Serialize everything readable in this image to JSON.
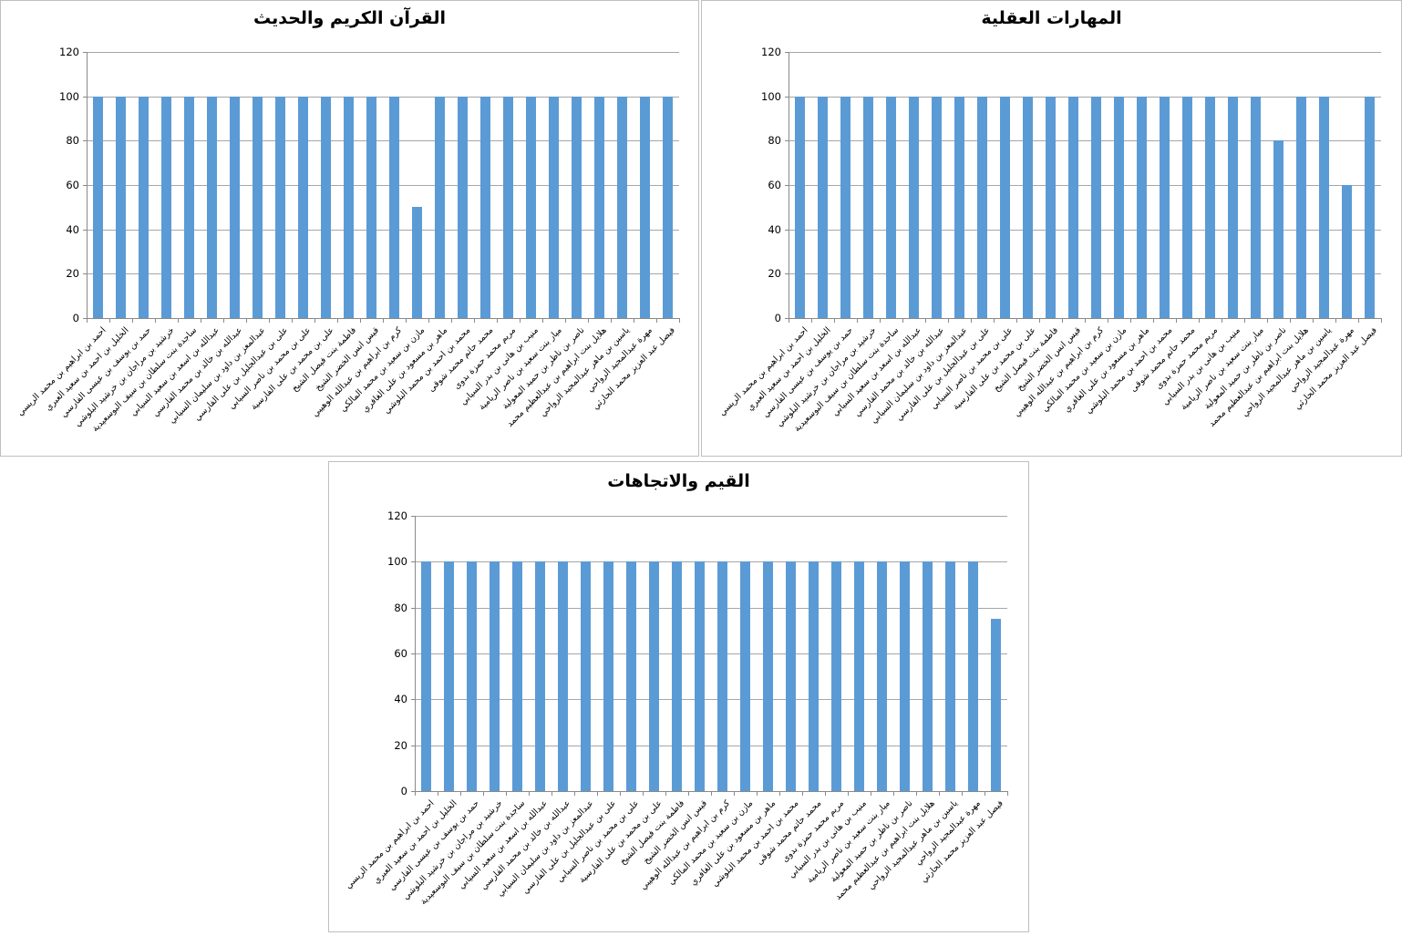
{
  "page": {
    "background": "#ffffff"
  },
  "colors": {
    "bar": "#5b9bd5",
    "gridline": "#a6a6a6",
    "axis": "#898989",
    "panel_border": "#bfbfbf",
    "title_text": "#000000"
  },
  "chart_data": [
    {
      "type": "bar",
      "title": "القرآن الكريم والحديث",
      "xlabel": "",
      "ylabel": "",
      "ylim": [
        0,
        120
      ],
      "yticks": [
        0,
        20,
        40,
        60,
        80,
        100,
        120
      ],
      "grid": true,
      "legend": "none",
      "categories": [
        "احمد بن ابراهيم بن محمد الريسي",
        "الخليل بن احمد بن سعيد العبري",
        "حمد بن يوسف بن عيسى الفارسي",
        "خرشيد بن مراجان بن خرشيد البلوشي",
        "ساجدة بنت سلطان بن سيف البوسعيدية",
        "عبدالله بن اسعد بن سعيد السيابي",
        "عبدالله بن خالد بن محمد الفارسي",
        "عبدالمعز بن داود بن سليمان السيابي",
        "على بن عبدالجليل بن على الفارسي",
        "على بن محمد بن ناصر السيابي",
        "على بن محمد بن على الفارسية",
        "فاطمة بنت فيصل الشيخ",
        "قيس انس الخضر الشيخ",
        "كرم بن ابراهيم بن عبدالله الوهيبي",
        "مازن بن سعيد بن محمد المالكي",
        "ماهر بن مسعود بن على الغافري",
        "محمد بن احمد بن محمد البلوشي",
        "محمد حاتم محمد شوقى",
        "مريم محمد حمزة بدوى",
        "منيب بن هانى بن بدر السيابي",
        "ميار بنت سعيد بن ناصر الريامية",
        "ناصر بن ناظر بن حميد المعولية",
        "هلايل بنت ابراهيم بن عبدالعظيم محمد",
        "ياسين بن ماهر عبدالمجيد الرواحي",
        "مهرة عبدالمجيد الرواحي",
        "فيصل عبد العزيز محمد الحارثي"
      ],
      "values": [
        100,
        100,
        100,
        100,
        100,
        100,
        100,
        100,
        100,
        100,
        100,
        100,
        100,
        100,
        50,
        100,
        100,
        100,
        100,
        100,
        100,
        100,
        100,
        100,
        100,
        100
      ]
    },
    {
      "type": "bar",
      "title": "المهارات العقلية",
      "xlabel": "",
      "ylabel": "",
      "ylim": [
        0,
        120
      ],
      "yticks": [
        0,
        20,
        40,
        60,
        80,
        100,
        120
      ],
      "grid": true,
      "legend": "none",
      "categories": [
        "احمد بن ابراهيم بن محمد الريسي",
        "الخليل بن احمد بن سعيد العبري",
        "حمد بن يوسف بن عيسى الفارسي",
        "خرشيد بن مراجان بن خرشيد البلوشي",
        "ساجدة بنت سلطان بن سيف البوسعيدية",
        "عبدالله بن اسعد بن سعيد السيابي",
        "عبدالله بن خالد بن محمد الفارسي",
        "عبدالمعز بن داود بن سليمان السيابي",
        "على بن عبدالجليل بن على الفارسي",
        "على بن محمد بن ناصر السيابي",
        "على بن محمد بن على الفارسية",
        "فاطمة بنت فيصل الشيخ",
        "قيس انس الخضر الشيخ",
        "كرم بن ابراهيم بن عبدالله الوهيبي",
        "مازن بن سعيد بن محمد المالكي",
        "ماهر بن مسعود بن على الغافري",
        "محمد بن احمد بن محمد البلوشي",
        "محمد حاتم محمد شوقى",
        "مريم محمد حمزة بدوى",
        "منيب بن هانى بن بدر السيابي",
        "ميار بنت سعيد بن ناصر الريامية",
        "ناصر بن ناظر بن حميد المعولية",
        "هلايل بنت ابراهيم بن عبدالعظيم محمد",
        "ياسين بن ماهر عبدالمجيد الرواحي",
        "مهرة عبدالمجيد الرواحي",
        "فيصل عبد العزيز محمد الحارثي"
      ],
      "values": [
        100,
        100,
        100,
        100,
        100,
        100,
        100,
        100,
        100,
        100,
        100,
        100,
        100,
        100,
        100,
        100,
        100,
        100,
        100,
        100,
        100,
        80,
        100,
        100,
        60,
        100
      ]
    },
    {
      "type": "bar",
      "title": "القيم والاتجاهات",
      "xlabel": "",
      "ylabel": "",
      "ylim": [
        0,
        120
      ],
      "yticks": [
        0,
        20,
        40,
        60,
        80,
        100,
        120
      ],
      "grid": true,
      "legend": "none",
      "categories": [
        "احمد بن ابراهيم بن محمد الريسي",
        "الخليل بن احمد بن سعيد العبري",
        "حمد بن يوسف بن عيسى الفارسي",
        "خرشيد بن مراجان بن خرشيد البلوشي",
        "ساجدة بنت سلطان بن سيف البوسعيدية",
        "عبدالله بن اسعد بن سعيد السيابي",
        "عبدالله بن خالد بن محمد الفارسي",
        "عبدالمعز بن داود بن سليمان السيابي",
        "على بن عبدالجليل بن على الفارسي",
        "على بن محمد بن ناصر السيابي",
        "على بن محمد بن على الفارسية",
        "فاطمة بنت فيصل الشيخ",
        "قيس انس الخضر الشيخ",
        "كرم بن ابراهيم بن عبدالله الوهيبي",
        "مازن بن سعيد بن محمد المالكي",
        "ماهر بن مسعود بن على الغافري",
        "محمد بن احمد بن محمد البلوشي",
        "محمد حاتم محمد شوقى",
        "مريم محمد حمزة بدوى",
        "منيب بن هانى بن بدر السيابي",
        "ميار بنت سعيد بن ناصر الريامية",
        "ناصر بن ناظر بن حميد المعولية",
        "هلايل بنت ابراهيم بن عبدالعظيم محمد",
        "ياسين بن ماهر عبدالمجيد الرواحي",
        "مهرة عبدالمجيد الرواحي",
        "فيصل عبد العزيز محمد الحارثي"
      ],
      "values": [
        100,
        100,
        100,
        100,
        100,
        100,
        100,
        100,
        100,
        100,
        100,
        100,
        100,
        100,
        100,
        100,
        100,
        100,
        100,
        100,
        100,
        100,
        100,
        100,
        100,
        75
      ]
    }
  ]
}
